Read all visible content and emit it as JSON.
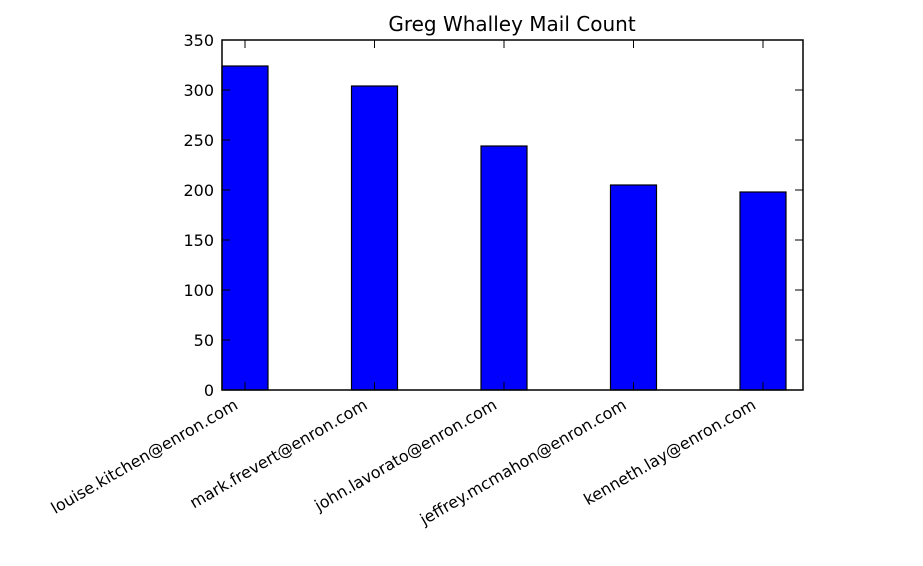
{
  "chart_data": {
    "type": "bar",
    "title": "Greg Whalley Mail Count",
    "xlabel": "",
    "ylabel": "",
    "categories": [
      "louise.kitchen@enron.com",
      "mark.frevert@enron.com",
      "john.lavorato@enron.com",
      "jeffrey.mcmahon@enron.com",
      "kenneth.lay@enron.com"
    ],
    "values": [
      324,
      304,
      244,
      205,
      198
    ],
    "ylim": [
      0,
      350
    ],
    "yticks": [
      0,
      50,
      100,
      150,
      200,
      250,
      300,
      350
    ],
    "grid": false,
    "legend": "none",
    "colors": {
      "bar_fill": "#0000ff",
      "bar_edge": "#000000",
      "axes": "#000000",
      "background": "#ffffff"
    }
  }
}
